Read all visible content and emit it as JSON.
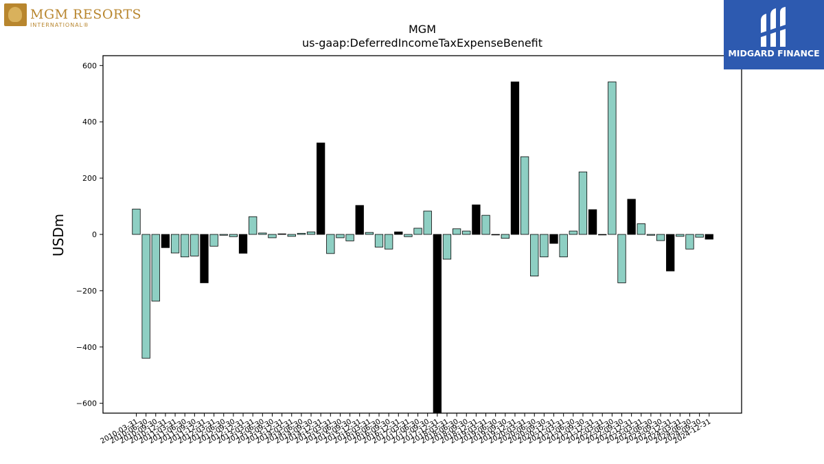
{
  "chart_data": {
    "type": "bar",
    "title": "MGM",
    "subtitle": "us-gaap:DeferredIncomeTaxExpenseBenefit",
    "ylabel": "USDm",
    "xlabel": "",
    "ylim": [
      -635,
      635
    ],
    "yticks": [
      -600,
      -400,
      -200,
      0,
      200,
      400,
      600
    ],
    "grid": false,
    "legend": "none",
    "colors": {
      "quarter": "#8ecfc3",
      "year_end": "#000000",
      "edge": "#000000"
    },
    "categories": [
      "2010-03-31",
      "2010-06-30",
      "2010-09-30",
      "2010-12-31",
      "2011-03-31",
      "2011-06-30",
      "2011-09-30",
      "2011-12-31",
      "2012-03-31",
      "2012-06-30",
      "2012-09-30",
      "2012-12-31",
      "2013-03-31",
      "2013-06-30",
      "2013-09-30",
      "2013-12-31",
      "2014-03-31",
      "2014-06-30",
      "2014-09-30",
      "2014-12-31",
      "2015-03-31",
      "2015-06-30",
      "2015-09-30",
      "2015-12-31",
      "2016-03-31",
      "2016-06-30",
      "2016-09-30",
      "2016-12-31",
      "2017-03-31",
      "2017-06-30",
      "2017-09-30",
      "2017-12-31",
      "2018-03-31",
      "2018-06-30",
      "2018-09-30",
      "2018-12-31",
      "2019-03-31",
      "2019-06-30",
      "2019-09-30",
      "2019-12-31",
      "2020-03-31",
      "2020-06-30",
      "2020-09-30",
      "2020-12-31",
      "2021-03-31",
      "2021-06-30",
      "2021-09-30",
      "2021-12-31",
      "2022-03-31",
      "2022-06-30",
      "2022-09-30",
      "2022-12-31",
      "2023-03-31",
      "2023-06-30",
      "2023-09-30",
      "2023-12-31",
      "2024-03-31",
      "2024-06-30",
      "2024-09-30",
      "2024-12-31"
    ],
    "values": [
      90,
      -440,
      -237,
      -47,
      -66,
      -80,
      -77,
      -172,
      -42,
      -3,
      -8,
      -67,
      63,
      5,
      -12,
      2,
      -7,
      4,
      9,
      325,
      -68,
      -12,
      -23,
      103,
      7,
      -45,
      -52,
      9,
      -8,
      22,
      83,
      -650,
      -88,
      20,
      12,
      105,
      68,
      -2,
      -14,
      542,
      276,
      -148,
      -80,
      -32,
      -80,
      12,
      222,
      88,
      -2,
      542,
      -172,
      125,
      38,
      -3,
      -22,
      -130,
      -7,
      -52,
      -10,
      -17
    ]
  },
  "logos": {
    "left_name": "MGM RESORTS",
    "left_sub": "INTERNATIONAL®",
    "right_name": "MIDGARD FINANCE"
  }
}
